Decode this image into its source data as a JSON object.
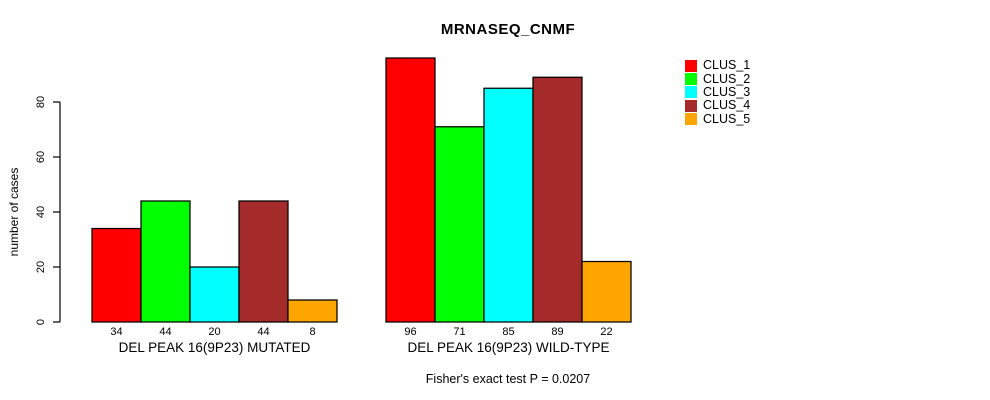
{
  "chart_data": {
    "type": "bar",
    "title": "MRNASEQ_CNMF",
    "ylabel": "number of cases",
    "xlabel": "",
    "yticks": [
      0,
      20,
      40,
      60,
      80
    ],
    "ylim": [
      0,
      96
    ],
    "grid": false,
    "legend_position": "right",
    "series": [
      "CLUS_1",
      "CLUS_2",
      "CLUS_3",
      "CLUS_4",
      "CLUS_5"
    ],
    "colors": [
      "#FF0000",
      "#00FF00",
      "#00FFFF",
      "#A52A2A",
      "#FFA500"
    ],
    "groups": [
      {
        "label": "DEL PEAK 16(9P23) MUTATED",
        "values": [
          34,
          44,
          20,
          44,
          8
        ]
      },
      {
        "label": "DEL PEAK 16(9P23) WILD-TYPE",
        "values": [
          96,
          71,
          85,
          89,
          22
        ]
      }
    ],
    "bar_value_labels": [
      [
        34,
        44,
        20,
        44,
        8
      ],
      [
        96,
        71,
        85,
        89,
        22
      ]
    ],
    "annotation": "Fisher's exact test P = 0.0207"
  }
}
